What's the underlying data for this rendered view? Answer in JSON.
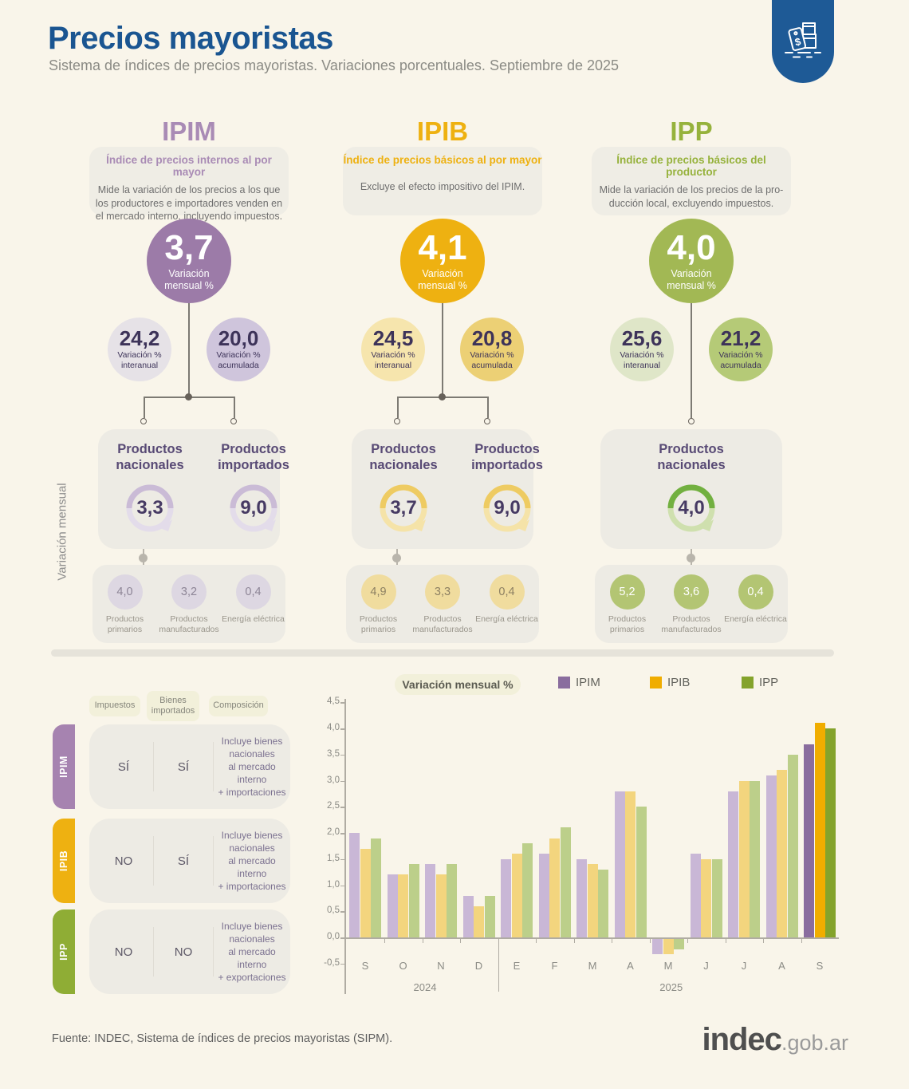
{
  "header": {
    "title": "Precios mayoristas",
    "subtitle": "Sistema de índices de precios mayoristas. Variaciones porcentuales. Septiembre de 2025"
  },
  "side_label": "Variación mensual",
  "columns": [
    {
      "name": "IPIM",
      "full_name": "Índice de precios internos al por mayor",
      "description": "Mide la variación de los precios a los que\nlos productores e importadores venden en\nel mercado interno, incluyendo impuestos.",
      "monthly": {
        "value": "3,7",
        "label": "Variación mensual %"
      },
      "interannual": {
        "value": "24,2",
        "label": "Variación % interanual"
      },
      "accumulated": {
        "value": "20,0",
        "label": "Variación % acumulada"
      },
      "products": [
        {
          "name": "Productos nacionales",
          "value": "3,3"
        },
        {
          "name": "Productos importados",
          "value": "9,0"
        }
      ],
      "breakdown": [
        {
          "value": "4,0",
          "label": "Productos primarios"
        },
        {
          "value": "3,2",
          "label": "Productos manufacturados"
        },
        {
          "value": "0,4",
          "label": "Energía eléctrica"
        }
      ],
      "colors": {
        "main": "#9c7ba8",
        "title": "#a98bb5",
        "circle_interannual": "#e6e2e7",
        "circle_accumulated": "#cfc5dc",
        "ring_strong": "#cabbd6",
        "ring_light": "#e3dcea",
        "bubble": "#ddd7e2",
        "bubble_text": "#8d8596",
        "tab": "#a683b0"
      }
    },
    {
      "name": "IPIB",
      "full_name": "Índice de precios básicos al por mayor",
      "description": "Excluye el efecto impositivo del IPIM.",
      "monthly": {
        "value": "4,1",
        "label": "Variación mensual %"
      },
      "interannual": {
        "value": "24,5",
        "label": "Variación % interanual"
      },
      "accumulated": {
        "value": "20,8",
        "label": "Variación % acumulada"
      },
      "products": [
        {
          "name": "Productos nacionales",
          "value": "3,7"
        },
        {
          "name": "Productos importados",
          "value": "9,0"
        }
      ],
      "breakdown": [
        {
          "value": "4,9",
          "label": "Productos primarios"
        },
        {
          "value": "3,3",
          "label": "Productos manufacturados"
        },
        {
          "value": "0,4",
          "label": "Energía eléctrica"
        }
      ],
      "colors": {
        "main": "#eeb111",
        "title": "#eeb111",
        "circle_interannual": "#f6e5ad",
        "circle_accumulated": "#ecd075",
        "ring_strong": "#eecb62",
        "ring_light": "#f5e3a8",
        "bubble": "#f0dc9e",
        "bubble_text": "#8d8062",
        "tab": "#eeb111"
      }
    },
    {
      "name": "IPP",
      "full_name": "Índice de precios básicos del productor",
      "description": "Mide la variación de los precios de la pro-\nducción local, excluyendo impuestos.",
      "monthly": {
        "value": "4,0",
        "label": "Variación mensual %"
      },
      "interannual": {
        "value": "25,6",
        "label": "Variación % interanual"
      },
      "accumulated": {
        "value": "21,2",
        "label": "Variación % acumulada"
      },
      "products": [
        {
          "name": "Productos nacionales",
          "value": "4,0"
        }
      ],
      "breakdown": [
        {
          "value": "5,2",
          "label": "Productos primarios"
        },
        {
          "value": "3,6",
          "label": "Productos manufacturados"
        },
        {
          "value": "0,4",
          "label": "Energía eléctrica"
        }
      ],
      "colors": {
        "main": "#a2b854",
        "title": "#96b23c",
        "circle_interannual": "#dfe6c8",
        "circle_accumulated": "#b5ca77",
        "ring_strong": "#72b040",
        "ring_light": "#cfe0ae",
        "bubble": "#b3c573",
        "bubble_text": "#ffffff",
        "tab": "#8fad35"
      }
    }
  ],
  "table": {
    "headers": [
      "Impuestos",
      "Bienes\nimportados",
      "Composición"
    ],
    "rows": [
      {
        "name": "IPIM",
        "impuestos": "SÍ",
        "bienes_importados": "SÍ",
        "composicion": "Incluye bienes\nnacionales\nal mercado interno\n+ importaciones"
      },
      {
        "name": "IPIB",
        "impuestos": "NO",
        "bienes_importados": "SÍ",
        "composicion": "Incluye bienes\nnacionales\nal mercado interno\n+ importaciones"
      },
      {
        "name": "IPP",
        "impuestos": "NO",
        "bienes_importados": "NO",
        "composicion": "Incluye bienes\nnacionales\nal mercado interno\n+ exportaciones"
      }
    ]
  },
  "chart_data": {
    "type": "bar",
    "title": "Variación mensual %",
    "categories": [
      "S",
      "O",
      "N",
      "D",
      "E",
      "F",
      "M",
      "A",
      "M",
      "J",
      "J",
      "A",
      "S"
    ],
    "year_groups": [
      {
        "label": "2024",
        "span": [
          0,
          3
        ]
      },
      {
        "label": "2025",
        "span": [
          4,
          12
        ]
      }
    ],
    "series": [
      {
        "name": "IPIM",
        "color_muted": "#c9b7d6",
        "color_strong": "#8a6d9e",
        "values": [
          2.0,
          1.2,
          1.4,
          0.8,
          1.5,
          1.6,
          1.5,
          2.8,
          -0.3,
          1.6,
          2.8,
          3.1,
          3.7
        ]
      },
      {
        "name": "IPIB",
        "color_muted": "#f3d57e",
        "color_strong": "#f0ad00",
        "values": [
          1.7,
          1.2,
          1.2,
          0.6,
          1.6,
          1.9,
          1.4,
          2.8,
          -0.3,
          1.5,
          3.0,
          3.2,
          4.1
        ]
      },
      {
        "name": "IPP",
        "color_muted": "#bccf8a",
        "color_strong": "#84a32c",
        "values": [
          1.9,
          1.4,
          1.4,
          0.8,
          1.8,
          2.1,
          1.3,
          2.5,
          -0.2,
          1.5,
          3.0,
          3.5,
          4.0
        ]
      }
    ],
    "highlight_index": 12,
    "ylim": [
      -0.5,
      4.5
    ],
    "ytick_step": 0.5,
    "yticks_labels": [
      "4,5",
      "4,0",
      "3,5",
      "3,0",
      "2,5",
      "2,0",
      "1,5",
      "1,0",
      "0,5",
      "0,0",
      "-0,5"
    ],
    "grid": false,
    "legend_position": "top"
  },
  "footer": {
    "source": "Fuente: INDEC, Sistema de índices de precios mayoristas (SIPM).",
    "logo_text": "indec",
    "logo_suffix": ".gob.ar"
  }
}
